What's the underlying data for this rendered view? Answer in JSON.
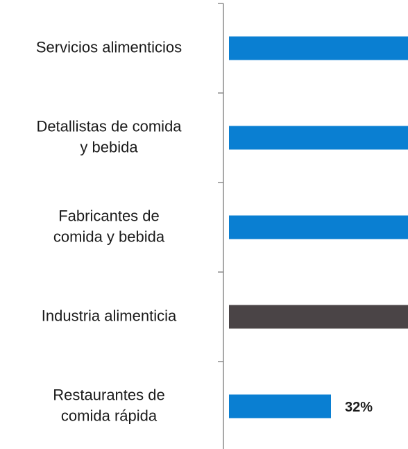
{
  "chart_data": {
    "type": "barh",
    "categories": [
      [
        "Servicios alimenticios"
      ],
      [
        "Detallistas de comida",
        "y bebida"
      ],
      [
        "Fabricantes de",
        "comida y bebida"
      ],
      [
        "Industria alimenticia"
      ],
      [
        "Restaurantes de",
        "comida rápida"
      ]
    ],
    "values": [
      60,
      58,
      57,
      59,
      32
    ],
    "value_labels": [
      null,
      null,
      null,
      null,
      "32%"
    ],
    "colors": [
      "#0a7fd2",
      "#0a7fd2",
      "#0a7fd2",
      "#4a4446",
      "#0a7fd2"
    ]
  }
}
